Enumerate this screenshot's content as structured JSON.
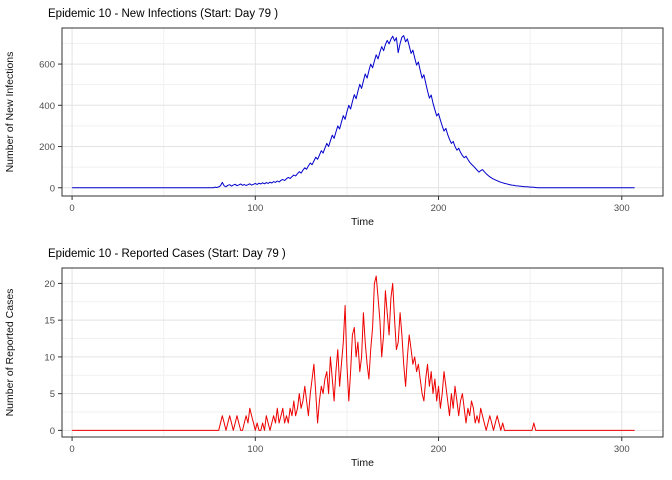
{
  "figure": {
    "background": "#FFFFFF"
  },
  "style": {
    "grid_major": "#E3E3E3",
    "grid_minor": "#F1F1F1",
    "panel_border": "#333333",
    "tick_color": "#333333",
    "tick_label_color": "#4D4D4D",
    "title_color": "#000000",
    "axis_title_color": "#111111"
  },
  "chart_data": [
    {
      "type": "line",
      "series_name": "new-infections",
      "title": "Epidemic 10 - New Infections (Start: Day 79 )",
      "xlabel": "Time",
      "ylabel": "Number of New Infections",
      "line_color": "#0000CC",
      "x_start": 0,
      "x_step": 1,
      "x_ticks": [
        0,
        100,
        200,
        300
      ],
      "x_minor_ticks": [
        50,
        150,
        250
      ],
      "y_ticks": [
        0,
        200,
        400,
        600
      ],
      "y_minor_ticks": [
        100,
        300,
        500,
        700
      ],
      "x_range": [
        -5.5,
        322.5
      ],
      "y_range": [
        -40,
        775
      ],
      "values": [
        0,
        0,
        0,
        0,
        0,
        0,
        0,
        0,
        0,
        0,
        0,
        0,
        0,
        0,
        0,
        0,
        0,
        0,
        0,
        0,
        0,
        0,
        0,
        0,
        0,
        0,
        0,
        0,
        0,
        0,
        0,
        0,
        0,
        0,
        0,
        0,
        0,
        0,
        0,
        0,
        0,
        0,
        0,
        0,
        0,
        0,
        0,
        0,
        0,
        0,
        0,
        0,
        0,
        0,
        0,
        0,
        0,
        0,
        0,
        0,
        0,
        0,
        0,
        0,
        0,
        0,
        0,
        0,
        0,
        0,
        0,
        0,
        0,
        0,
        0,
        0,
        0,
        0,
        3,
        1,
        4,
        10,
        26,
        9,
        5,
        12,
        15,
        8,
        13,
        17,
        10,
        14,
        18,
        12,
        16,
        11,
        15,
        19,
        13,
        17,
        21,
        16,
        22,
        18,
        24,
        19,
        25,
        21,
        27,
        23,
        30,
        26,
        33,
        28,
        36,
        40,
        35,
        44,
        50,
        45,
        54,
        62,
        57,
        68,
        78,
        71,
        85,
        97,
        90,
        106,
        120,
        112,
        130,
        148,
        138,
        158,
        180,
        168,
        192,
        215,
        200,
        228,
        255,
        240,
        270,
        300,
        285,
        318,
        350,
        332,
        368,
        400,
        382,
        418,
        452,
        432,
        468,
        502,
        482,
        518,
        552,
        532,
        568,
        600,
        582,
        615,
        645,
        625,
        658,
        685,
        665,
        695,
        715,
        698,
        720,
        735,
        712,
        728,
        655,
        700,
        730,
        738,
        708,
        722,
        688,
        652,
        668,
        630,
        595,
        610,
        570,
        532,
        548,
        508,
        470,
        435,
        450,
        410,
        378,
        348,
        360,
        328,
        300,
        275,
        288,
        258,
        235,
        215,
        225,
        200,
        182,
        192,
        172,
        156,
        146,
        153,
        137,
        124,
        114,
        105,
        96,
        86,
        76,
        83,
        88,
        78,
        68,
        60,
        53,
        47,
        42,
        38,
        34,
        30,
        27,
        24,
        21,
        19,
        17,
        15,
        13,
        12,
        10,
        9,
        8,
        7,
        6,
        5,
        5,
        4,
        3,
        3,
        2,
        1,
        0,
        0,
        0,
        0,
        0,
        0,
        0,
        0,
        0,
        0,
        0,
        0,
        0,
        0,
        0,
        0,
        0,
        0,
        0,
        0,
        0,
        0,
        0,
        0,
        0,
        0,
        0,
        0,
        0,
        0,
        0,
        0,
        0,
        0,
        0,
        0,
        0,
        0,
        0,
        0,
        0,
        0,
        0,
        0,
        0,
        0,
        0,
        0,
        0,
        0,
        0,
        0,
        0,
        0
      ]
    },
    {
      "type": "line",
      "series_name": "reported-cases",
      "title": "Epidemic 10 - Reported Cases (Start: Day 79 )",
      "xlabel": "Time",
      "ylabel": "Number of Reported Cases",
      "line_color": "#EE0000",
      "x_start": 0,
      "x_step": 1,
      "x_ticks": [
        0,
        100,
        200,
        300
      ],
      "x_minor_ticks": [
        50,
        150,
        250
      ],
      "y_ticks": [
        0,
        5,
        10,
        15,
        20
      ],
      "y_minor_ticks": [
        2.5,
        7.5,
        12.5,
        17.5
      ],
      "x_range": [
        -5.5,
        322.5
      ],
      "y_range": [
        -0.9,
        22.1
      ],
      "values": [
        0,
        0,
        0,
        0,
        0,
        0,
        0,
        0,
        0,
        0,
        0,
        0,
        0,
        0,
        0,
        0,
        0,
        0,
        0,
        0,
        0,
        0,
        0,
        0,
        0,
        0,
        0,
        0,
        0,
        0,
        0,
        0,
        0,
        0,
        0,
        0,
        0,
        0,
        0,
        0,
        0,
        0,
        0,
        0,
        0,
        0,
        0,
        0,
        0,
        0,
        0,
        0,
        0,
        0,
        0,
        0,
        0,
        0,
        0,
        0,
        0,
        0,
        0,
        0,
        0,
        0,
        0,
        0,
        0,
        0,
        0,
        0,
        0,
        0,
        0,
        0,
        0,
        0,
        0,
        0,
        0,
        1,
        2,
        1,
        0,
        1,
        2,
        1,
        0,
        1,
        2,
        1,
        0,
        0,
        1,
        2,
        1,
        3,
        2,
        1,
        0,
        1,
        0,
        0,
        1,
        0,
        2,
        1,
        0,
        1,
        2,
        1,
        3,
        1,
        2,
        3,
        1,
        2,
        1,
        3,
        2,
        4,
        2,
        3,
        5,
        3,
        4,
        6,
        4,
        2,
        5,
        7,
        9,
        5,
        1,
        4,
        6,
        5,
        7,
        8,
        5,
        10,
        7,
        4,
        8,
        11,
        6,
        9,
        12,
        17,
        9,
        4,
        8,
        13,
        14,
        10,
        12,
        8,
        10,
        16,
        12,
        9,
        7,
        11,
        14,
        20,
        21,
        18,
        15,
        10,
        13,
        19,
        16,
        13,
        18,
        20,
        15,
        11,
        12,
        16,
        13,
        9,
        6,
        10,
        13,
        11,
        9,
        10,
        8,
        9,
        7,
        5,
        4,
        7,
        9,
        6,
        8,
        5,
        7,
        4,
        6,
        3,
        5,
        8,
        6,
        4,
        2,
        5,
        3,
        6,
        4,
        2,
        4,
        5,
        3,
        1,
        3,
        2,
        4,
        3,
        1,
        2,
        1,
        3,
        2,
        1,
        0,
        1,
        2,
        1,
        0,
        1,
        2,
        1,
        0,
        1,
        0,
        0,
        0,
        0,
        0,
        0,
        0,
        0,
        0,
        0,
        0,
        0,
        0,
        0,
        0,
        0,
        1,
        0,
        0,
        0,
        0,
        0,
        0,
        0,
        0,
        0,
        0,
        0,
        0,
        0,
        0,
        0,
        0,
        0,
        0,
        0,
        0,
        0,
        0,
        0,
        0,
        0,
        0,
        0,
        0,
        0,
        0,
        0,
        0,
        0,
        0,
        0,
        0,
        0,
        0,
        0,
        0,
        0,
        0,
        0,
        0,
        0,
        0,
        0,
        0,
        0,
        0,
        0,
        0,
        0,
        0,
        0
      ]
    }
  ]
}
